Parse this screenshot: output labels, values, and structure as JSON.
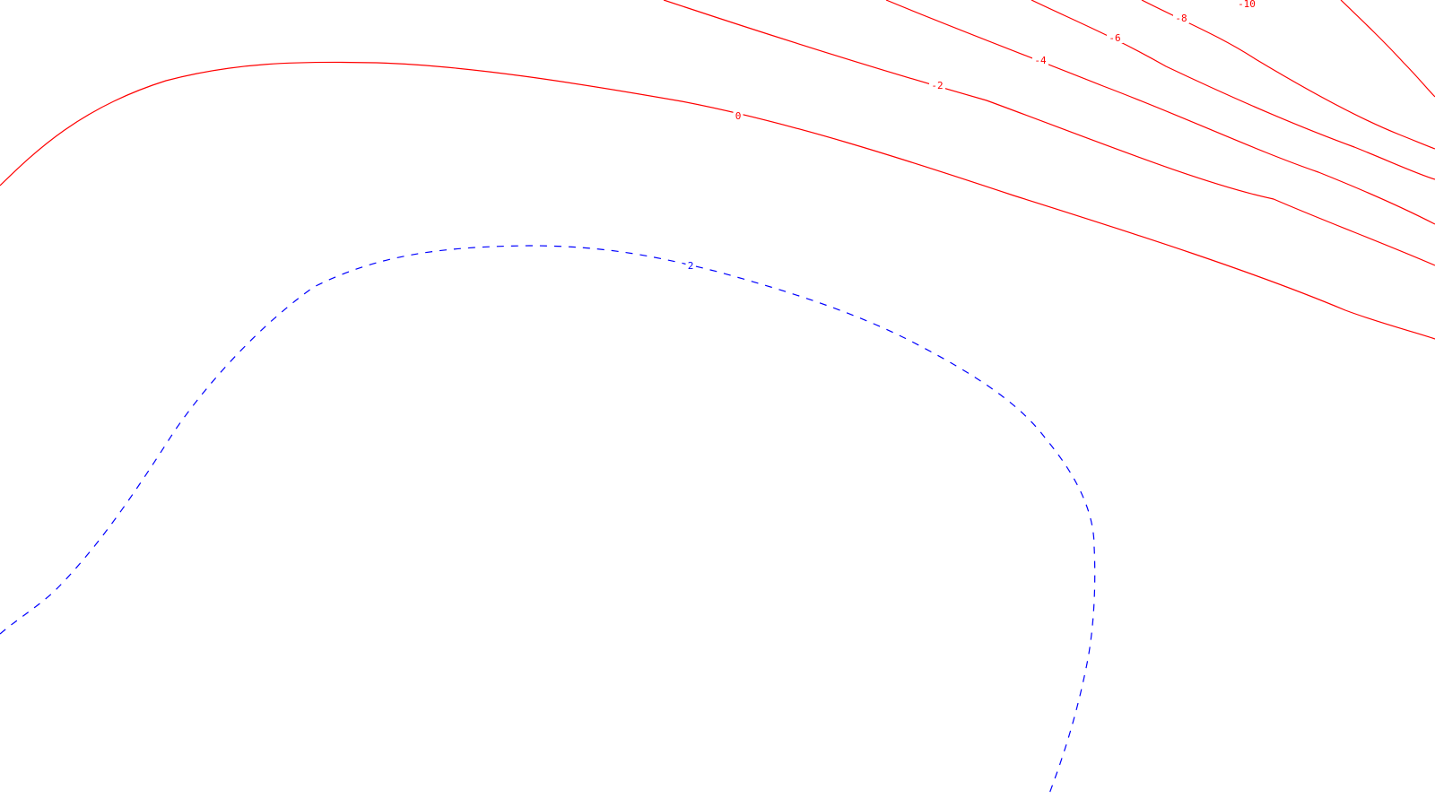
{
  "chart_data": {
    "type": "contour",
    "title": "",
    "xlabel": "",
    "ylabel": "",
    "grid": false,
    "legend": "none",
    "colors": {
      "negative": "#ff0000",
      "positive": "#0000ff",
      "background": "#ffffff"
    },
    "levels": [
      {
        "value": 0,
        "label": "0",
        "color": "#ff0000",
        "dashed": false
      },
      {
        "value": -2,
        "label": "-2",
        "color": "#ff0000",
        "dashed": false
      },
      {
        "value": -4,
        "label": "-4",
        "color": "#ff0000",
        "dashed": false
      },
      {
        "value": -6,
        "label": "-6",
        "color": "#ff0000",
        "dashed": false
      },
      {
        "value": -8,
        "label": "-8",
        "color": "#ff0000",
        "dashed": false
      },
      {
        "value": -10,
        "label": "-10",
        "color": "#ff0000",
        "dashed": false
      },
      {
        "value": 2,
        "label": "2",
        "color": "#0000ff",
        "dashed": true
      }
    ]
  }
}
